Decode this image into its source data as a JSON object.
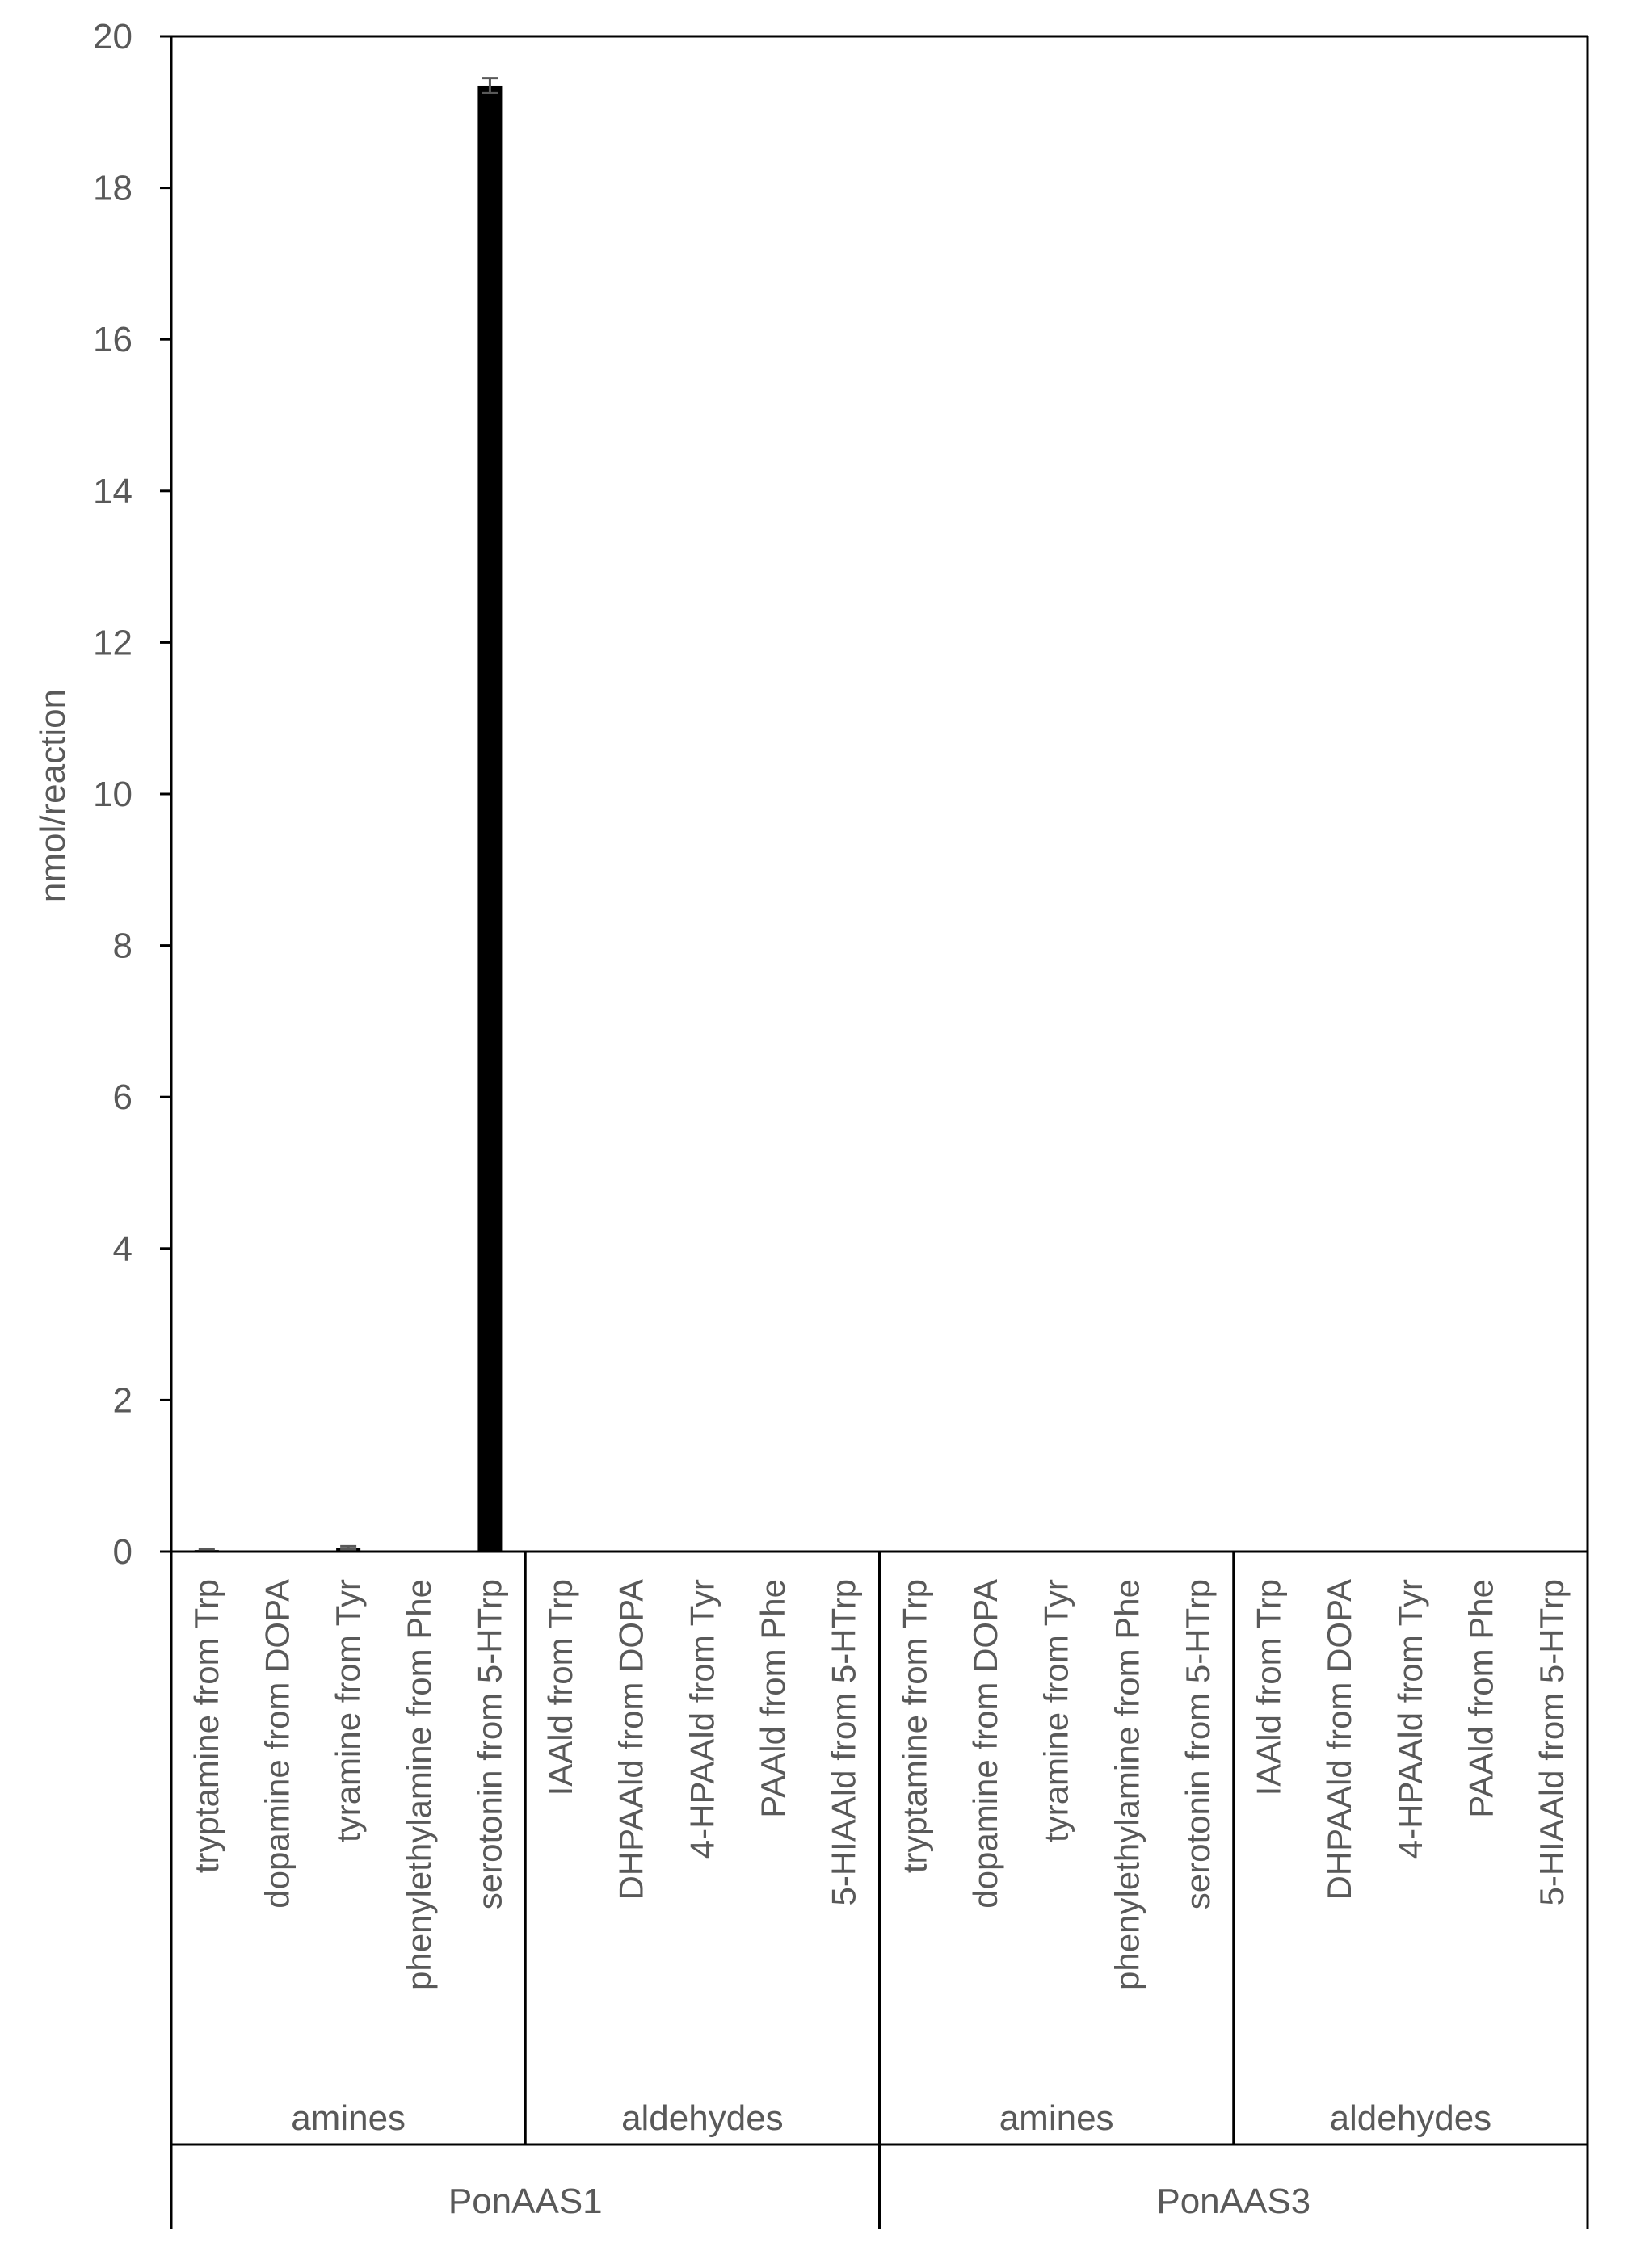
{
  "chart_data": {
    "type": "bar",
    "ylabel": "nmol/reaction",
    "ylim": [
      0,
      20
    ],
    "yticks": [
      "0",
      "2",
      "4",
      "6",
      "8",
      "10",
      "12",
      "14",
      "16",
      "18",
      "20"
    ],
    "categories": [
      "tryptamine from Trp",
      "dopamine from DOPA",
      "tyramine from Tyr",
      "phenylethylamine from Phe",
      "serotonin from 5-HTrp",
      "IAAld from Trp",
      "DHPAAld from DOPA",
      "4-HPAAld from Tyr",
      "PAAld from Phe",
      "5-HIAAld from 5-HTrp",
      "tryptamine from Trp",
      "dopamine from DOPA",
      "tyramine from Tyr",
      "phenylethylamine from Phe",
      "serotonin from 5-HTrp",
      "IAAld from Trp",
      "DHPAAld from DOPA",
      "4-HPAAld from Tyr",
      "PAAld from Phe",
      "5-HIAAld from 5-HTrp"
    ],
    "values": [
      0.02,
      0,
      0.05,
      0,
      19.35,
      0,
      0,
      0,
      0,
      0,
      0,
      0,
      0,
      0,
      0,
      0,
      0,
      0,
      0,
      0
    ],
    "errors": [
      0.01,
      0,
      0.02,
      0,
      0.1,
      0,
      0,
      0,
      0,
      0,
      0,
      0,
      0,
      0,
      0,
      0,
      0,
      0,
      0,
      0
    ],
    "subgroups": [
      "amines",
      "aldehydes",
      "amines",
      "aldehydes"
    ],
    "groups": [
      "PonAAS1",
      "PonAAS3"
    ],
    "bar_color": "#000000",
    "grid": false
  }
}
